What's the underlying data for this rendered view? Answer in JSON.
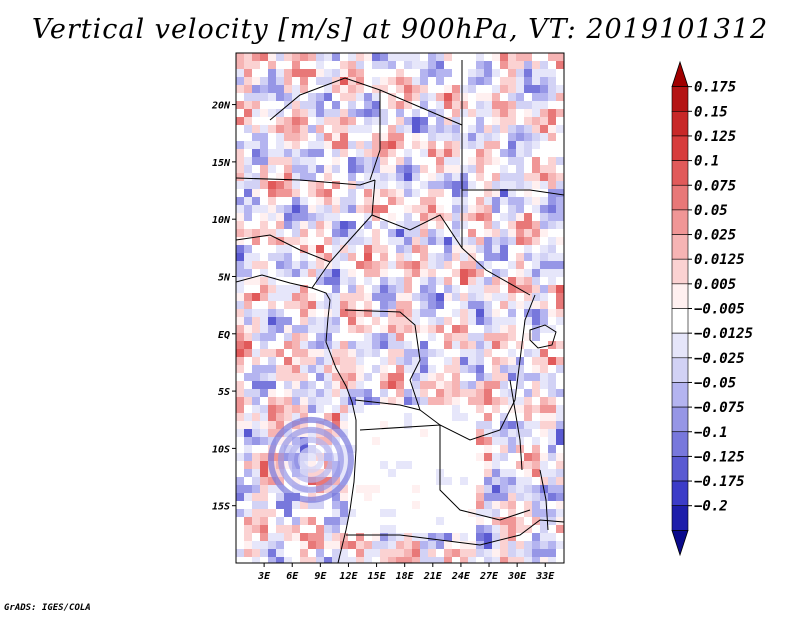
{
  "chart_data": {
    "type": "heatmap",
    "title": "Vertical velocity [m/s] at 900hPa, VT: 2019101312",
    "variable": "Vertical velocity",
    "units": "m/s",
    "level": "900hPa",
    "valid_time": "2019101312",
    "xlim": [
      0,
      35
    ],
    "ylim": [
      -20,
      24.5
    ],
    "x_ticks": [
      3,
      6,
      9,
      12,
      15,
      18,
      21,
      24,
      27,
      30,
      33
    ],
    "x_tick_labels": [
      "3E",
      "6E",
      "9E",
      "12E",
      "15E",
      "18E",
      "21E",
      "24E",
      "27E",
      "30E",
      "33E"
    ],
    "y_ticks": [
      20,
      15,
      10,
      5,
      0,
      -5,
      -10,
      -15
    ],
    "y_tick_labels": [
      "20N",
      "15N",
      "10N",
      "5N",
      "EQ",
      "5S",
      "10S",
      "15S"
    ],
    "colorbar": {
      "levels": [
        0.175,
        0.15,
        0.125,
        0.1,
        0.075,
        0.05,
        0.025,
        0.0125,
        0.005,
        -0.005,
        -0.0125,
        -0.025,
        -0.05,
        -0.075,
        -0.1,
        -0.125,
        -0.175,
        -0.2
      ],
      "labels": [
        "0.175",
        "0.15",
        "0.125",
        "0.1",
        "0.075",
        "0.05",
        "0.025",
        "0.0125",
        "0.005",
        "−0.005",
        "−0.0125",
        "−0.025",
        "−0.05",
        "−0.075",
        "−0.1",
        "−0.125",
        "−0.175",
        "−0.2"
      ],
      "colors": [
        "#a00000",
        "#b41414",
        "#c82828",
        "#d73c3c",
        "#e15a5a",
        "#e87878",
        "#f09696",
        "#f6b4b4",
        "#fbd2d2",
        "#fff0f0",
        "#ffffff",
        "#e6e6fa",
        "#d2d2f5",
        "#b4b4f0",
        "#9696e6",
        "#7878dc",
        "#5a5ad2",
        "#3c3cc8",
        "#1e1eaa",
        "#0a0a8c"
      ]
    }
  },
  "credit": "GrADS: IGES/COLA"
}
